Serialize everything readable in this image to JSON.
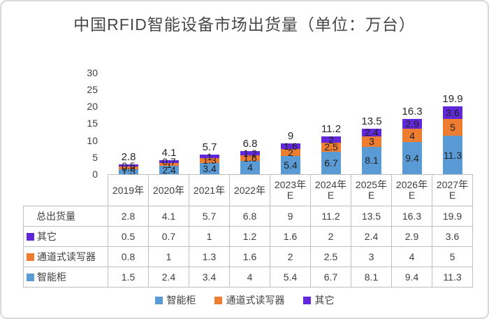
{
  "title": "中国RFID智能设备市场出货量（单位：万台）",
  "colors": {
    "smart_cabinet": "#5B9BD5",
    "channel_reader": "#ED7D31",
    "other": "#6128D9",
    "axis_text": "#404040",
    "table_border": "#BFBFBF",
    "frame_border": "#D9D9D9",
    "title_text": "#484848"
  },
  "chart_data": {
    "type": "bar",
    "stacked": true,
    "title": "中国RFID智能设备市场出货量（单位：万台）",
    "categories": [
      "2019年",
      "2020年",
      "2021年",
      "2022年",
      "2023年E",
      "2024年E",
      "2025年E",
      "2026年E",
      "2027年E"
    ],
    "series": [
      {
        "name": "智能柜",
        "color": "#5B9BD5",
        "values": [
          1.5,
          2.4,
          3.4,
          4,
          5.4,
          6.7,
          8.1,
          9.4,
          11.3
        ]
      },
      {
        "name": "通道式读写器",
        "color": "#ED7D31",
        "values": [
          0.8,
          1,
          1.3,
          1.6,
          2,
          2.5,
          3,
          4,
          5
        ]
      },
      {
        "name": "其它",
        "color": "#6128D9",
        "values": [
          0.5,
          0.7,
          1,
          1.2,
          1.6,
          2,
          2.4,
          2.9,
          3.6
        ]
      }
    ],
    "totals": {
      "label": "总出货量",
      "values": [
        2.8,
        4.1,
        5.7,
        6.8,
        9,
        11.2,
        13.5,
        16.3,
        19.9
      ]
    },
    "ylim": [
      0,
      30
    ],
    "yticks": [
      0,
      5,
      10,
      15,
      20,
      25,
      30
    ],
    "grid": false,
    "data_labels": true,
    "legend_position": "bottom",
    "data_table_shown": true
  },
  "table": {
    "header": [
      "2019年",
      "2020年",
      "2021年",
      "2022年",
      "2023年E",
      "2024年E",
      "2025年E",
      "2026年E",
      "2027年E"
    ],
    "rows": [
      {
        "label": "总出货量",
        "key_color": null,
        "values": [
          2.8,
          4.1,
          5.7,
          6.8,
          9,
          11.2,
          13.5,
          16.3,
          19.9
        ]
      },
      {
        "label": "其它",
        "key_color": "#6128D9",
        "values": [
          0.5,
          0.7,
          1,
          1.2,
          1.6,
          2,
          2.4,
          2.9,
          3.6
        ]
      },
      {
        "label": "通道式读写器",
        "key_color": "#ED7D31",
        "values": [
          0.8,
          1,
          1.3,
          1.6,
          2,
          2.5,
          3,
          4,
          5
        ]
      },
      {
        "label": "智能柜",
        "key_color": "#5B9BD5",
        "values": [
          1.5,
          2.4,
          3.4,
          4,
          5.4,
          6.7,
          8.1,
          9.4,
          11.3
        ]
      }
    ]
  },
  "legend": {
    "items": [
      {
        "label": "智能柜",
        "color": "#5B9BD5"
      },
      {
        "label": "通道式读写器",
        "color": "#ED7D31"
      },
      {
        "label": "其它",
        "color": "#6128D9"
      }
    ]
  }
}
